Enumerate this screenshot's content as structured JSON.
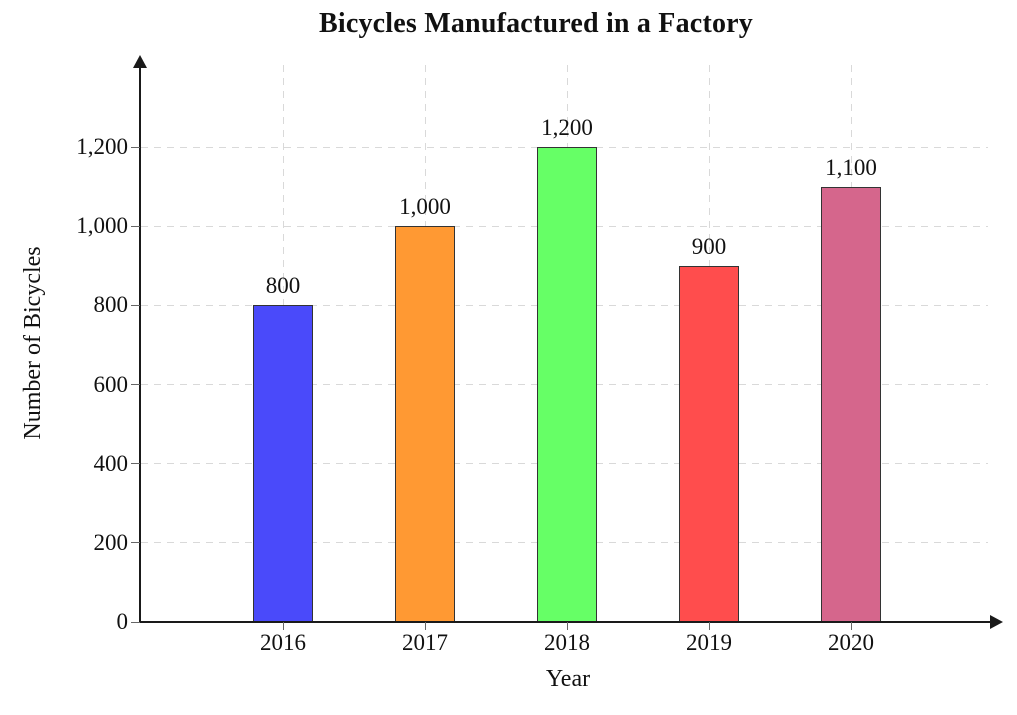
{
  "chart_data": {
    "type": "bar",
    "title": "Bicycles Manufactured in a Factory",
    "xlabel": "Year",
    "ylabel": "Number of Bicycles",
    "categories": [
      "2016",
      "2017",
      "2018",
      "2019",
      "2020"
    ],
    "values": [
      800,
      1000,
      1200,
      900,
      1100
    ],
    "value_labels": [
      "800",
      "1,000",
      "1,200",
      "900",
      "1,100"
    ],
    "bar_colors": [
      "#4a4afa",
      "#ff9933",
      "#66ff66",
      "#ff4d4d",
      "#d5668c"
    ],
    "bar_border_color": "#333333",
    "ylim": [
      0,
      1200
    ],
    "ytick_step": 200,
    "ytick_labels": [
      "0",
      "200",
      "400",
      "600",
      "800",
      "1,000",
      "1,200"
    ],
    "grid": "dashed",
    "grid_orientation": "both",
    "gridline_color": "#d9d9d9",
    "axis_color": "#1a1a1a",
    "axis_arrows": "x-right and y-up",
    "legend": "none"
  }
}
